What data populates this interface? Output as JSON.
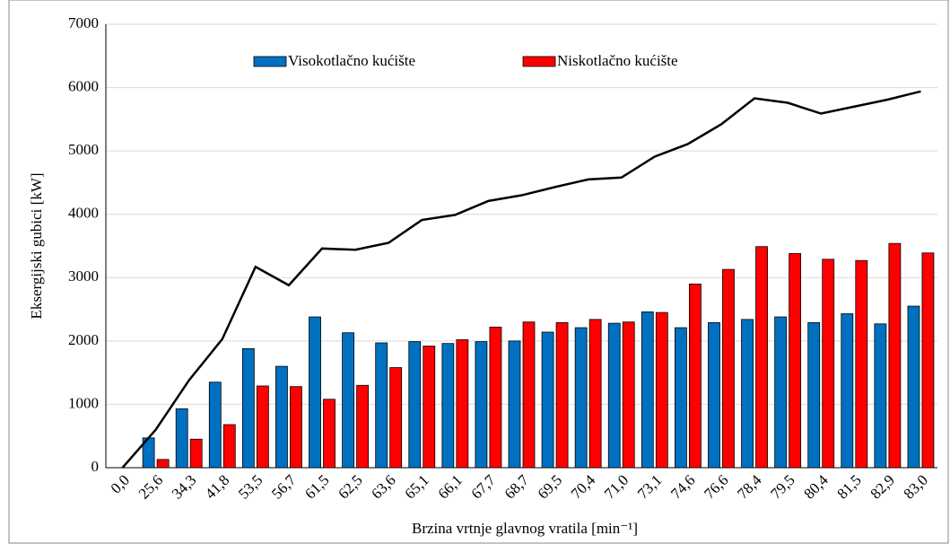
{
  "chart_data": {
    "type": "bar",
    "x_label": "Brzina vrtnje glavnog vratila [min⁻¹]",
    "y_label": "Eksergijski gubici [kW]",
    "categories": [
      "0,0",
      "25,6",
      "34,3",
      "41,8",
      "53,5",
      "56,7",
      "61,5",
      "62,5",
      "63,6",
      "65,1",
      "66,1",
      "67,7",
      "68,7",
      "69,5",
      "70,4",
      "71,0",
      "73,1",
      "74,6",
      "76,6",
      "78,4",
      "79,5",
      "80,4",
      "81,5",
      "82,9",
      "83,0"
    ],
    "series": [
      {
        "name": "Visokotlačno kućište",
        "color": "#0070c0",
        "values": [
          0,
          470,
          930,
          1350,
          1880,
          1600,
          2380,
          2130,
          1970,
          1990,
          1960,
          1990,
          2000,
          2140,
          2210,
          2280,
          2460,
          2210,
          2290,
          2340,
          2380,
          2290,
          2430,
          2270,
          2550
        ]
      },
      {
        "name": "Niskotlačno kućište",
        "color": "#ff0000",
        "values": [
          0,
          130,
          450,
          680,
          1290,
          1280,
          1080,
          1300,
          1580,
          1920,
          2020,
          2220,
          2300,
          2290,
          2340,
          2300,
          2450,
          2900,
          3130,
          3490,
          3380,
          3290,
          3270,
          3540,
          3390
        ]
      },
      {
        "type": "line",
        "color": "#000000",
        "values": [
          0,
          600,
          1380,
          2030,
          3170,
          2880,
          3460,
          3440,
          3550,
          3910,
          3990,
          4210,
          4300,
          4430,
          4550,
          4580,
          4910,
          5110,
          5420,
          5830,
          5760,
          5590,
          5700,
          5810,
          5940
        ]
      }
    ],
    "ylim": [
      0,
      7000
    ],
    "yticks": [
      0,
      1000,
      2000,
      3000,
      4000,
      5000,
      6000,
      7000
    ],
    "grid": true
  }
}
